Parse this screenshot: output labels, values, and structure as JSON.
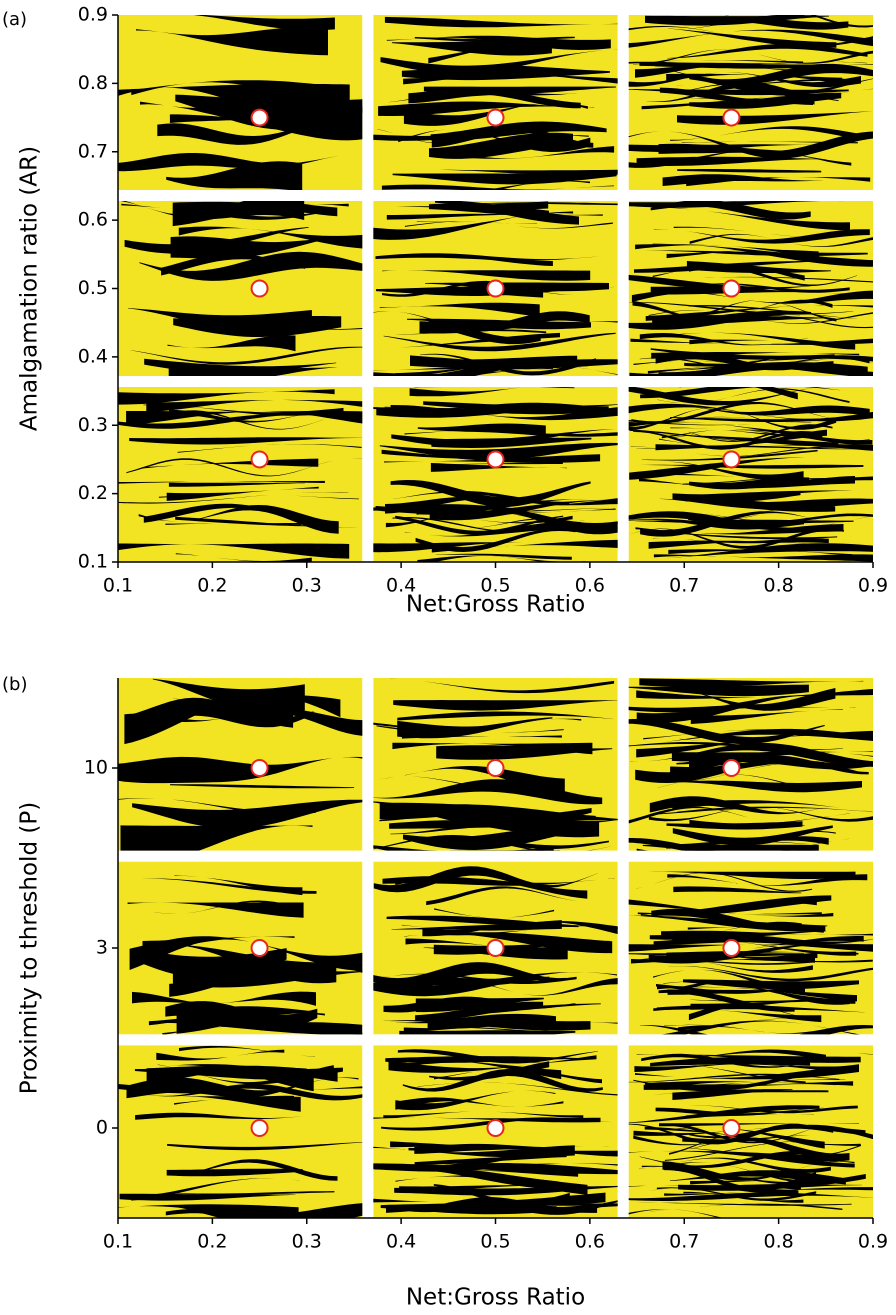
{
  "chart_data": [
    {
      "type": "scatter",
      "panel_label": "(a)",
      "x_label": "Net:Gross Ratio",
      "y_label": "Amalgamation ratio (AR)",
      "x": [
        0.25,
        0.5,
        0.75,
        0.25,
        0.5,
        0.75,
        0.25,
        0.5,
        0.75
      ],
      "y": [
        0.75,
        0.75,
        0.75,
        0.5,
        0.5,
        0.5,
        0.25,
        0.25,
        0.25
      ],
      "xlim": [
        0.1,
        0.9
      ],
      "ylim": [
        0.1,
        0.9
      ],
      "xticks": [
        0.1,
        0.2,
        0.3,
        0.4,
        0.5,
        0.6,
        0.7,
        0.8,
        0.9
      ],
      "yticks": [
        0.1,
        0.2,
        0.3,
        0.4,
        0.5,
        0.6,
        0.7,
        0.8,
        0.9
      ],
      "y_scale": "linear",
      "marker_fill": "#ffffff",
      "marker_edge": "#e8251f",
      "panel_colors": [
        "#f2e422",
        "#000000"
      ]
    },
    {
      "type": "scatter",
      "panel_label": "(b)",
      "x_label": "Net:Gross Ratio",
      "y_label": "Proximity to threshold (P)",
      "x": [
        0.25,
        0.5,
        0.75,
        0.25,
        0.5,
        0.75,
        0.25,
        0.5,
        0.75
      ],
      "y": [
        10,
        10,
        10,
        3,
        3,
        3,
        0,
        0,
        0
      ],
      "xlim": [
        0.1,
        0.9
      ],
      "xticks": [
        0.1,
        0.2,
        0.3,
        0.4,
        0.5,
        0.6,
        0.7,
        0.8,
        0.9
      ],
      "yticks": [
        0,
        3,
        10
      ],
      "y_scale": "category",
      "marker_fill": "#ffffff",
      "marker_edge": "#e8251f",
      "panel_colors": [
        "#f2e422",
        "#000000"
      ]
    }
  ]
}
